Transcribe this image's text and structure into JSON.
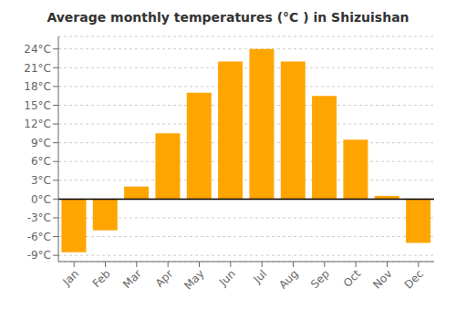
{
  "chart_data": {
    "type": "bar",
    "title": "Average monthly temperatures (°C ) in Shizuishan",
    "categories": [
      "Jan",
      "Feb",
      "Mar",
      "Apr",
      "May",
      "Jun",
      "Jul",
      "Aug",
      "Sep",
      "Oct",
      "Nov",
      "Dec"
    ],
    "values": [
      -8.5,
      -5.0,
      2.0,
      10.5,
      17.0,
      22.0,
      24.0,
      22.0,
      16.5,
      9.5,
      0.5,
      -7.0
    ],
    "color": "#FFA500",
    "ylim": [
      -10,
      26
    ],
    "yticks": [
      {
        "value": -9,
        "label": "-9°C"
      },
      {
        "value": -6,
        "label": "-6°C"
      },
      {
        "value": -3,
        "label": "-3°C"
      },
      {
        "value": 0,
        "label": "0°C"
      },
      {
        "value": 3,
        "label": "3°C"
      },
      {
        "value": 6,
        "label": "6°C"
      },
      {
        "value": 9,
        "label": "9°C"
      },
      {
        "value": 12,
        "label": "12°C"
      },
      {
        "value": 15,
        "label": "15°C"
      },
      {
        "value": 18,
        "label": "18°C"
      },
      {
        "value": 21,
        "label": "21°C"
      },
      {
        "value": 24,
        "label": "24°C"
      }
    ],
    "grid": true
  }
}
